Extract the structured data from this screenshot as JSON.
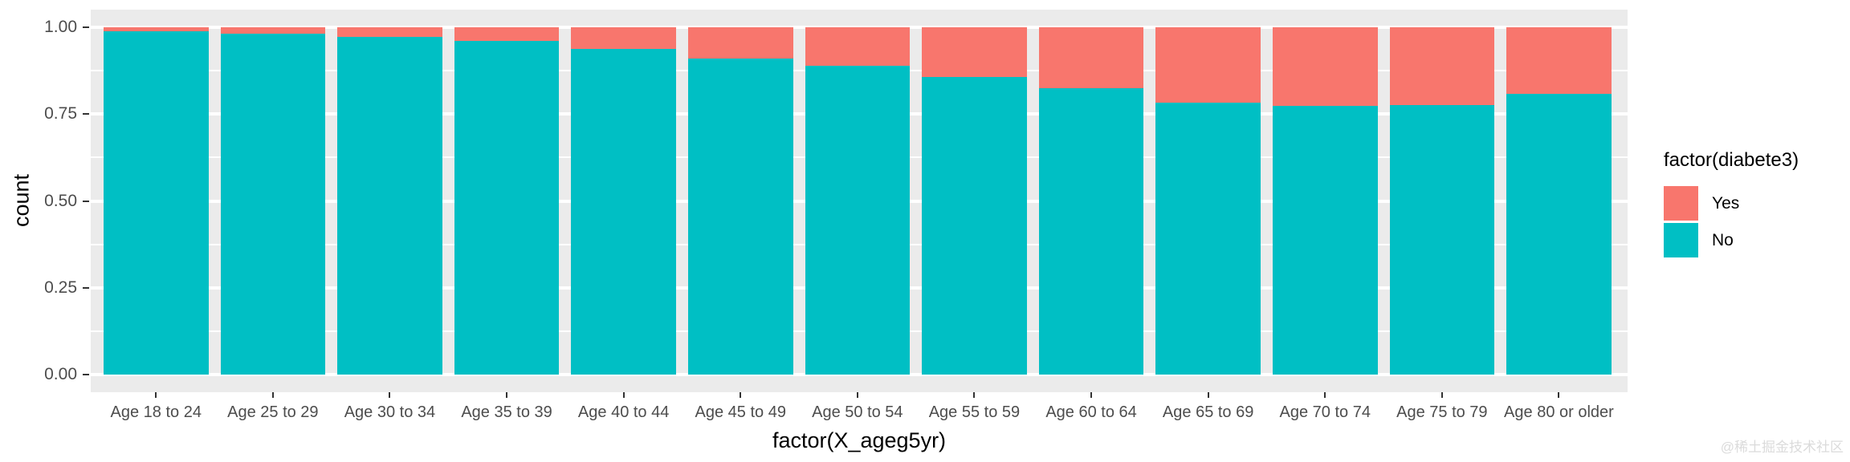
{
  "chart": {
    "y_axis": {
      "title": "count",
      "tick_labels": [
        "1.00",
        "0.75",
        "0.50",
        "0.25",
        "0.00"
      ]
    },
    "x_axis": {
      "title": "factor(X_ageg5yr)"
    },
    "legend": {
      "title": "factor(diabete3)",
      "items": [
        {
          "label": "Yes",
          "color": "#F8766D"
        },
        {
          "label": "No",
          "color": "#00BFC4"
        }
      ]
    },
    "watermark": "@稀土掘金技术社区",
    "colors": {
      "panel_background": "#EBEBEB",
      "gridline": "#ffffff",
      "tick_text": "#4D4D4D",
      "axis_title_text": "#000000"
    }
  },
  "chart_data": {
    "type": "bar",
    "stacked": true,
    "position": "fill",
    "title": "",
    "xlabel": "factor(X_ageg5yr)",
    "ylabel": "count",
    "categories": [
      "Age 18 to 24",
      "Age 25 to 29",
      "Age 30 to 34",
      "Age 35 to 39",
      "Age 40 to 44",
      "Age 45 to 49",
      "Age 50 to 54",
      "Age 55 to 59",
      "Age 60 to 64",
      "Age 65 to 69",
      "Age 70 to 74",
      "Age 75 to 79",
      "Age 80 or older"
    ],
    "series": [
      {
        "name": "Yes",
        "color": "#F8766D",
        "values": [
          0.012,
          0.018,
          0.028,
          0.04,
          0.063,
          0.089,
          0.112,
          0.144,
          0.176,
          0.217,
          0.227,
          0.223,
          0.191
        ]
      },
      {
        "name": "No",
        "color": "#00BFC4",
        "values": [
          0.988,
          0.982,
          0.972,
          0.96,
          0.937,
          0.911,
          0.888,
          0.856,
          0.824,
          0.783,
          0.773,
          0.777,
          0.809
        ]
      }
    ],
    "ylim": [
      0,
      1
    ],
    "yticks": [
      0.0,
      0.25,
      0.5,
      0.75,
      1.0
    ],
    "yticks_minor": [
      0.125,
      0.375,
      0.625,
      0.875
    ],
    "grid": true,
    "legend_position": "right",
    "theme": "ggplot-gray"
  }
}
